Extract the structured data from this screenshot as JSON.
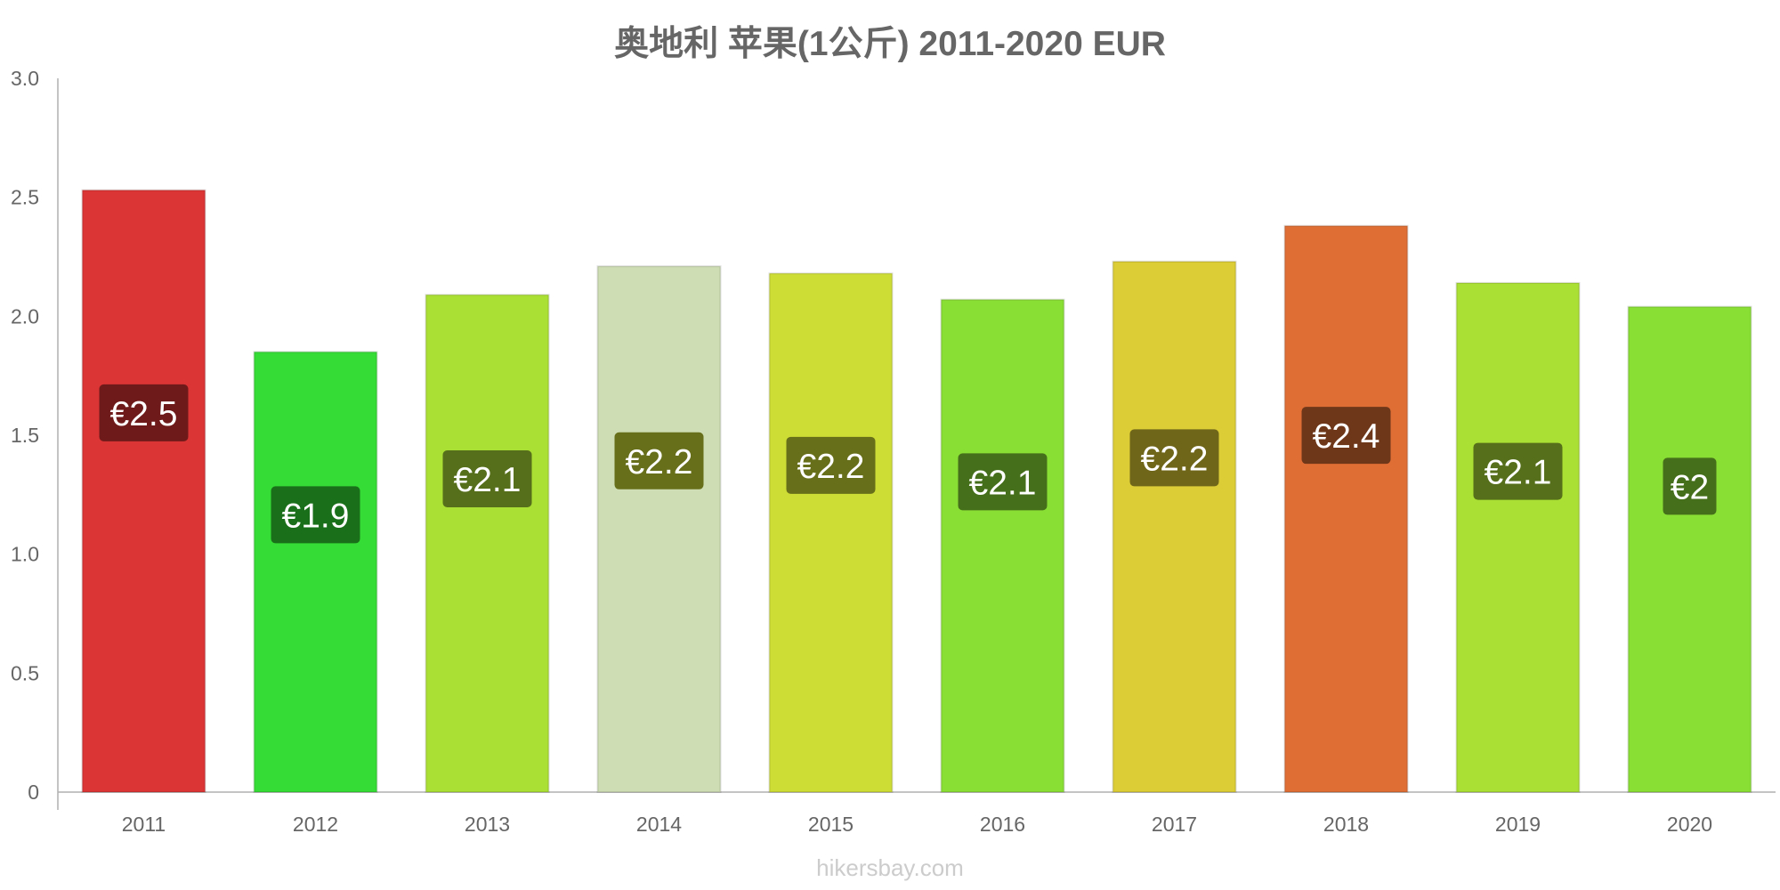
{
  "chart_data": {
    "type": "bar",
    "title": "奥地利 苹果(1公斤) 2011-2020 EUR",
    "xlabel": "",
    "ylabel": "",
    "categories": [
      "2011",
      "2012",
      "2013",
      "2014",
      "2015",
      "2016",
      "2017",
      "2018",
      "2019",
      "2020"
    ],
    "values": [
      2.53,
      1.85,
      2.09,
      2.21,
      2.18,
      2.07,
      2.23,
      2.38,
      2.14,
      2.04
    ],
    "data_labels": [
      "€2.5",
      "€1.9",
      "€2.1",
      "€2.2",
      "€2.2",
      "€2.1",
      "€2.2",
      "€2.4",
      "€2.1",
      "€2"
    ],
    "ylim": [
      0,
      3.0
    ],
    "yticks": [
      0,
      0.5,
      1.0,
      1.5,
      2.0,
      2.5,
      3.0
    ],
    "ytick_labels": [
      "0",
      "0.5",
      "1.0",
      "1.5",
      "2.0",
      "2.5",
      "3.0"
    ],
    "grid": false,
    "legend": "none",
    "bar_colors": [
      "#dc3535",
      "#35dc35",
      "#aadf33",
      "#ceddb3",
      "#cedd35",
      "#8adf35",
      "#dccc35",
      "#df6e35",
      "#aadf33",
      "#8adf35"
    ],
    "label_bg_colors": [
      "#6f1a1a",
      "#1a6f1a",
      "#556f1a",
      "#676f1a",
      "#676f1a",
      "#456f1a",
      "#6f661a",
      "#6f371a",
      "#556f1a",
      "#456f1a"
    ]
  },
  "watermark": "hikersbay.com"
}
